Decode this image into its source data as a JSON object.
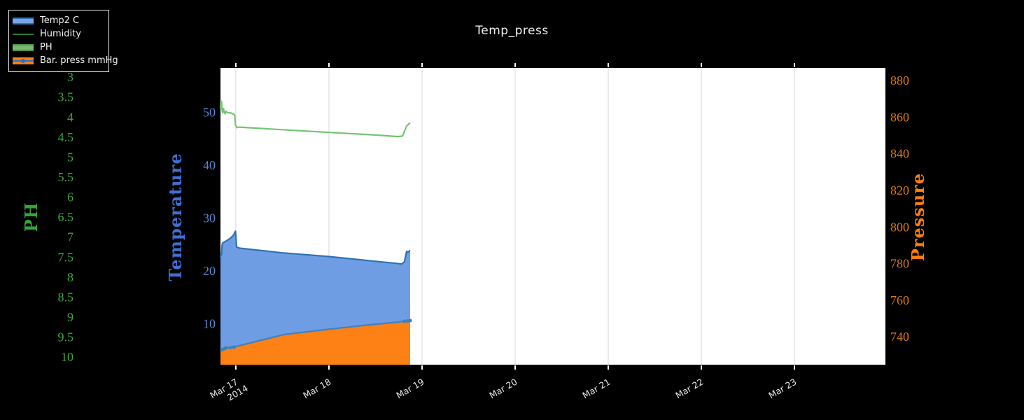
{
  "figure": {
    "title": "Temp_press",
    "title_color": "#efefef",
    "background": "#000000",
    "plot_background": "#ffffff",
    "grid_color": "#e5e5e5",
    "tick_mark_color": "#ffffff",
    "x_label_color": "#eaeaea"
  },
  "legend": {
    "position": "top-left",
    "items": [
      {
        "label": "Temp2 C",
        "swatch": {
          "kind": "area",
          "fill": "#7aa6e6",
          "line": "#2e72b5"
        }
      },
      {
        "label": "Humidity",
        "swatch": {
          "kind": "line",
          "line": "#2d7a2d"
        }
      },
      {
        "label": "PH",
        "swatch": {
          "kind": "area",
          "fill": "#79b96f",
          "line": "#4e8f46"
        }
      },
      {
        "label": "Bar. press mmHg",
        "swatch": {
          "kind": "area-line-marker",
          "fill": "#ff7f0e",
          "line": "#2a72c2"
        }
      }
    ]
  },
  "chart_data": {
    "type": "line",
    "title": "Temp_press",
    "grid": "vertical-only",
    "legend_position": "top-left",
    "x_axis": {
      "kind": "date",
      "tick_labels": [
        "Mar 17",
        "Mar 18",
        "Mar 19",
        "Mar 20",
        "Mar 21",
        "Mar 22",
        "Mar 23"
      ],
      "year_label": "2014",
      "tick_days": [
        0,
        1,
        2,
        3,
        4,
        5,
        6
      ],
      "range_days": [
        -0.165,
        6.977
      ]
    },
    "y_axes": {
      "temperature": {
        "label": "Temperature",
        "side": "left",
        "tick_values": [
          10,
          20,
          30,
          40,
          50
        ],
        "tick_labels": [
          "10",
          "20",
          "30",
          "40",
          "50"
        ],
        "range_top": 58.4,
        "range_bottom": 2.24,
        "tick_color": "#5c88d0",
        "title_color": "#3f6fd3"
      },
      "ph": {
        "label": "PH",
        "side": "far-left",
        "tick_values": [
          3,
          3.5,
          4,
          4.5,
          5,
          5.5,
          6,
          6.5,
          7,
          7.5,
          8,
          8.5,
          9,
          9.5,
          10
        ],
        "tick_labels": [
          "3",
          "3.5",
          "4",
          "4.5",
          "5",
          "5.5",
          "6",
          "6.5",
          "7",
          "7.5",
          "8",
          "8.5",
          "9",
          "9.5",
          "10"
        ],
        "range_top": 2.77,
        "range_bottom": 10.19,
        "reversed": true,
        "tick_color": "#41a441",
        "title_color": "#38a338"
      },
      "pressure": {
        "label": "Pressure",
        "side": "right",
        "tick_values": [
          740,
          760,
          780,
          800,
          820,
          840,
          860,
          880
        ],
        "tick_labels": [
          "740",
          "760",
          "780",
          "800",
          "820",
          "840",
          "860",
          "880"
        ],
        "range_top": 886.9,
        "range_bottom": 724.8,
        "tick_color": "#dd7a10",
        "title_color": "#ff7f0e"
      }
    },
    "series": [
      {
        "name": "Temp2 C",
        "axis": "temperature",
        "mode": "area",
        "line_color": "#2e72b5",
        "fill_color": "#6f9de4",
        "points": [
          [
            -0.165,
            22.6
          ],
          [
            -0.161,
            23.2
          ],
          [
            -0.157,
            22.9
          ],
          [
            -0.152,
            23.3
          ],
          [
            -0.149,
            24.6
          ],
          [
            -0.146,
            25.0
          ],
          [
            -0.14,
            25.3
          ],
          [
            -0.12,
            25.5
          ],
          [
            -0.09,
            25.8
          ],
          [
            -0.05,
            26.3
          ],
          [
            -0.02,
            26.9
          ],
          [
            -0.01,
            27.3
          ],
          [
            -0.004,
            27.5
          ],
          [
            0.002,
            26.2
          ],
          [
            0.008,
            24.5
          ],
          [
            0.04,
            24.3
          ],
          [
            0.5,
            23.4
          ],
          [
            1.0,
            22.7
          ],
          [
            1.5,
            21.8
          ],
          [
            1.73,
            21.4
          ],
          [
            1.78,
            21.3
          ],
          [
            1.81,
            21.7
          ],
          [
            1.835,
            23.7
          ],
          [
            1.85,
            23.5
          ],
          [
            1.872,
            23.9
          ]
        ]
      },
      {
        "name": "Humidity",
        "axis": "temperature",
        "mode": "line",
        "line_color": "#74c476",
        "points": [
          [
            -0.165,
            50.7
          ],
          [
            -0.162,
            52.2
          ],
          [
            -0.158,
            51.2
          ],
          [
            -0.154,
            52.0
          ],
          [
            -0.15,
            51.0
          ],
          [
            -0.146,
            50.3
          ],
          [
            -0.141,
            49.9
          ],
          [
            -0.133,
            50.7
          ],
          [
            -0.125,
            50.1
          ],
          [
            -0.115,
            49.7
          ],
          [
            -0.105,
            50.2
          ],
          [
            -0.09,
            49.9
          ],
          [
            -0.06,
            49.9
          ],
          [
            -0.03,
            49.7
          ],
          [
            -0.012,
            49.5
          ],
          [
            -0.004,
            47.6
          ],
          [
            0.01,
            47.1
          ],
          [
            0.04,
            47.2
          ],
          [
            0.5,
            46.7
          ],
          [
            1.0,
            46.2
          ],
          [
            1.5,
            45.7
          ],
          [
            1.74,
            45.4
          ],
          [
            1.79,
            45.5
          ],
          [
            1.835,
            47.4
          ],
          [
            1.872,
            48.0
          ]
        ]
      },
      {
        "name": "PH",
        "axis": "ph",
        "mode": "none",
        "line_color": "#4e8f46",
        "fill_color": "#79b96f",
        "points": []
      },
      {
        "name": "Bar. press mmHg",
        "axis": "pressure",
        "mode": "area",
        "line_color": "#3b82c4",
        "fill_color": "#fd8114",
        "points": [
          [
            -0.165,
            732.4
          ],
          [
            -0.15,
            733.0
          ],
          [
            -0.135,
            732.8
          ],
          [
            -0.12,
            733.6
          ],
          [
            -0.105,
            734.1
          ],
          [
            -0.09,
            733.9
          ],
          [
            -0.06,
            734.1
          ],
          [
            -0.02,
            734.4
          ],
          [
            0.0,
            734.7
          ],
          [
            0.25,
            737.9
          ],
          [
            0.53,
            741.4
          ],
          [
            1.0,
            744.2
          ],
          [
            1.4,
            746.4
          ],
          [
            1.7,
            747.9
          ],
          [
            1.81,
            748.5
          ],
          [
            1.872,
            748.9
          ]
        ],
        "marker_points": [
          [
            -0.15,
            733.0
          ],
          [
            -0.12,
            733.6
          ],
          [
            -0.105,
            734.1
          ],
          [
            -0.06,
            734.1
          ],
          [
            -0.02,
            734.4
          ],
          [
            1.81,
            748.5
          ],
          [
            1.845,
            748.7
          ],
          [
            1.872,
            748.9
          ]
        ]
      }
    ]
  }
}
